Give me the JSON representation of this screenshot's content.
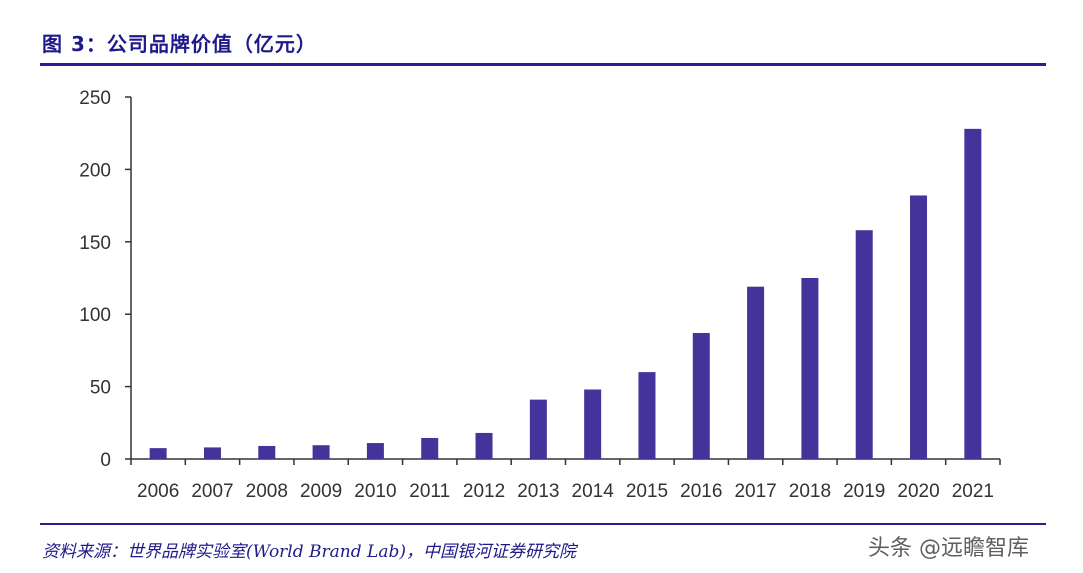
{
  "figure": {
    "title": "图 3：公司品牌价值（亿元）",
    "source": "资料来源：世界品牌实验室(World Brand Lab)，中国银河证券研究院",
    "watermark": "头条 @远瞻智库"
  },
  "chart_data": {
    "type": "bar",
    "title": "",
    "xlabel": "",
    "ylabel": "",
    "categories": [
      "2006",
      "2007",
      "2008",
      "2009",
      "2010",
      "2011",
      "2012",
      "2013",
      "2014",
      "2015",
      "2016",
      "2017",
      "2018",
      "2019",
      "2020",
      "2021"
    ],
    "values": [
      7.5,
      8,
      9,
      9.5,
      11,
      14.5,
      18,
      41,
      48,
      60,
      87,
      119,
      125,
      158,
      182,
      228
    ],
    "ylim": [
      0,
      250
    ],
    "yticks": [
      0,
      50,
      100,
      150,
      200,
      250
    ],
    "grid": false,
    "legend": "none",
    "bar_color": "#43339a",
    "axis_color": "#333333"
  }
}
